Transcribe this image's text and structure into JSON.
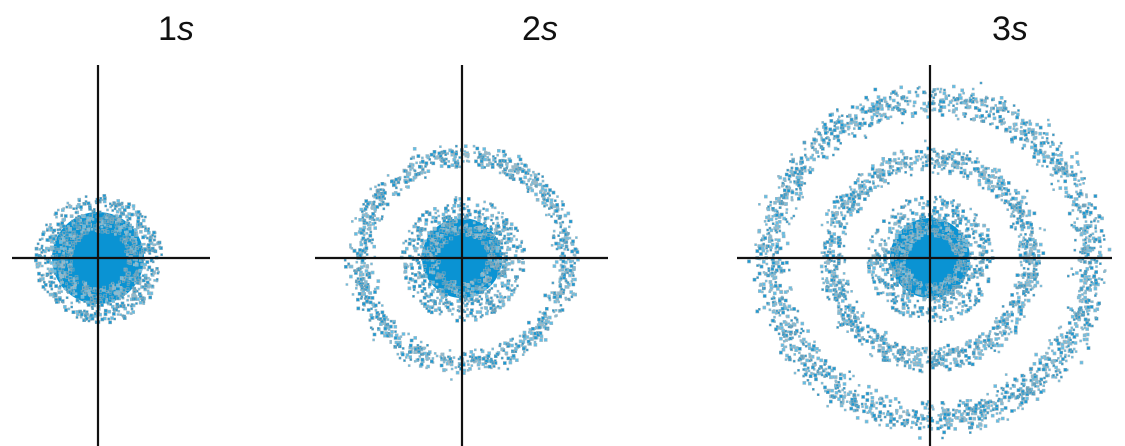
{
  "panels": [
    {
      "shell": "1",
      "orbital": "s"
    },
    {
      "shell": "2",
      "orbital": "s"
    },
    {
      "shell": "3",
      "orbital": "s"
    }
  ]
}
